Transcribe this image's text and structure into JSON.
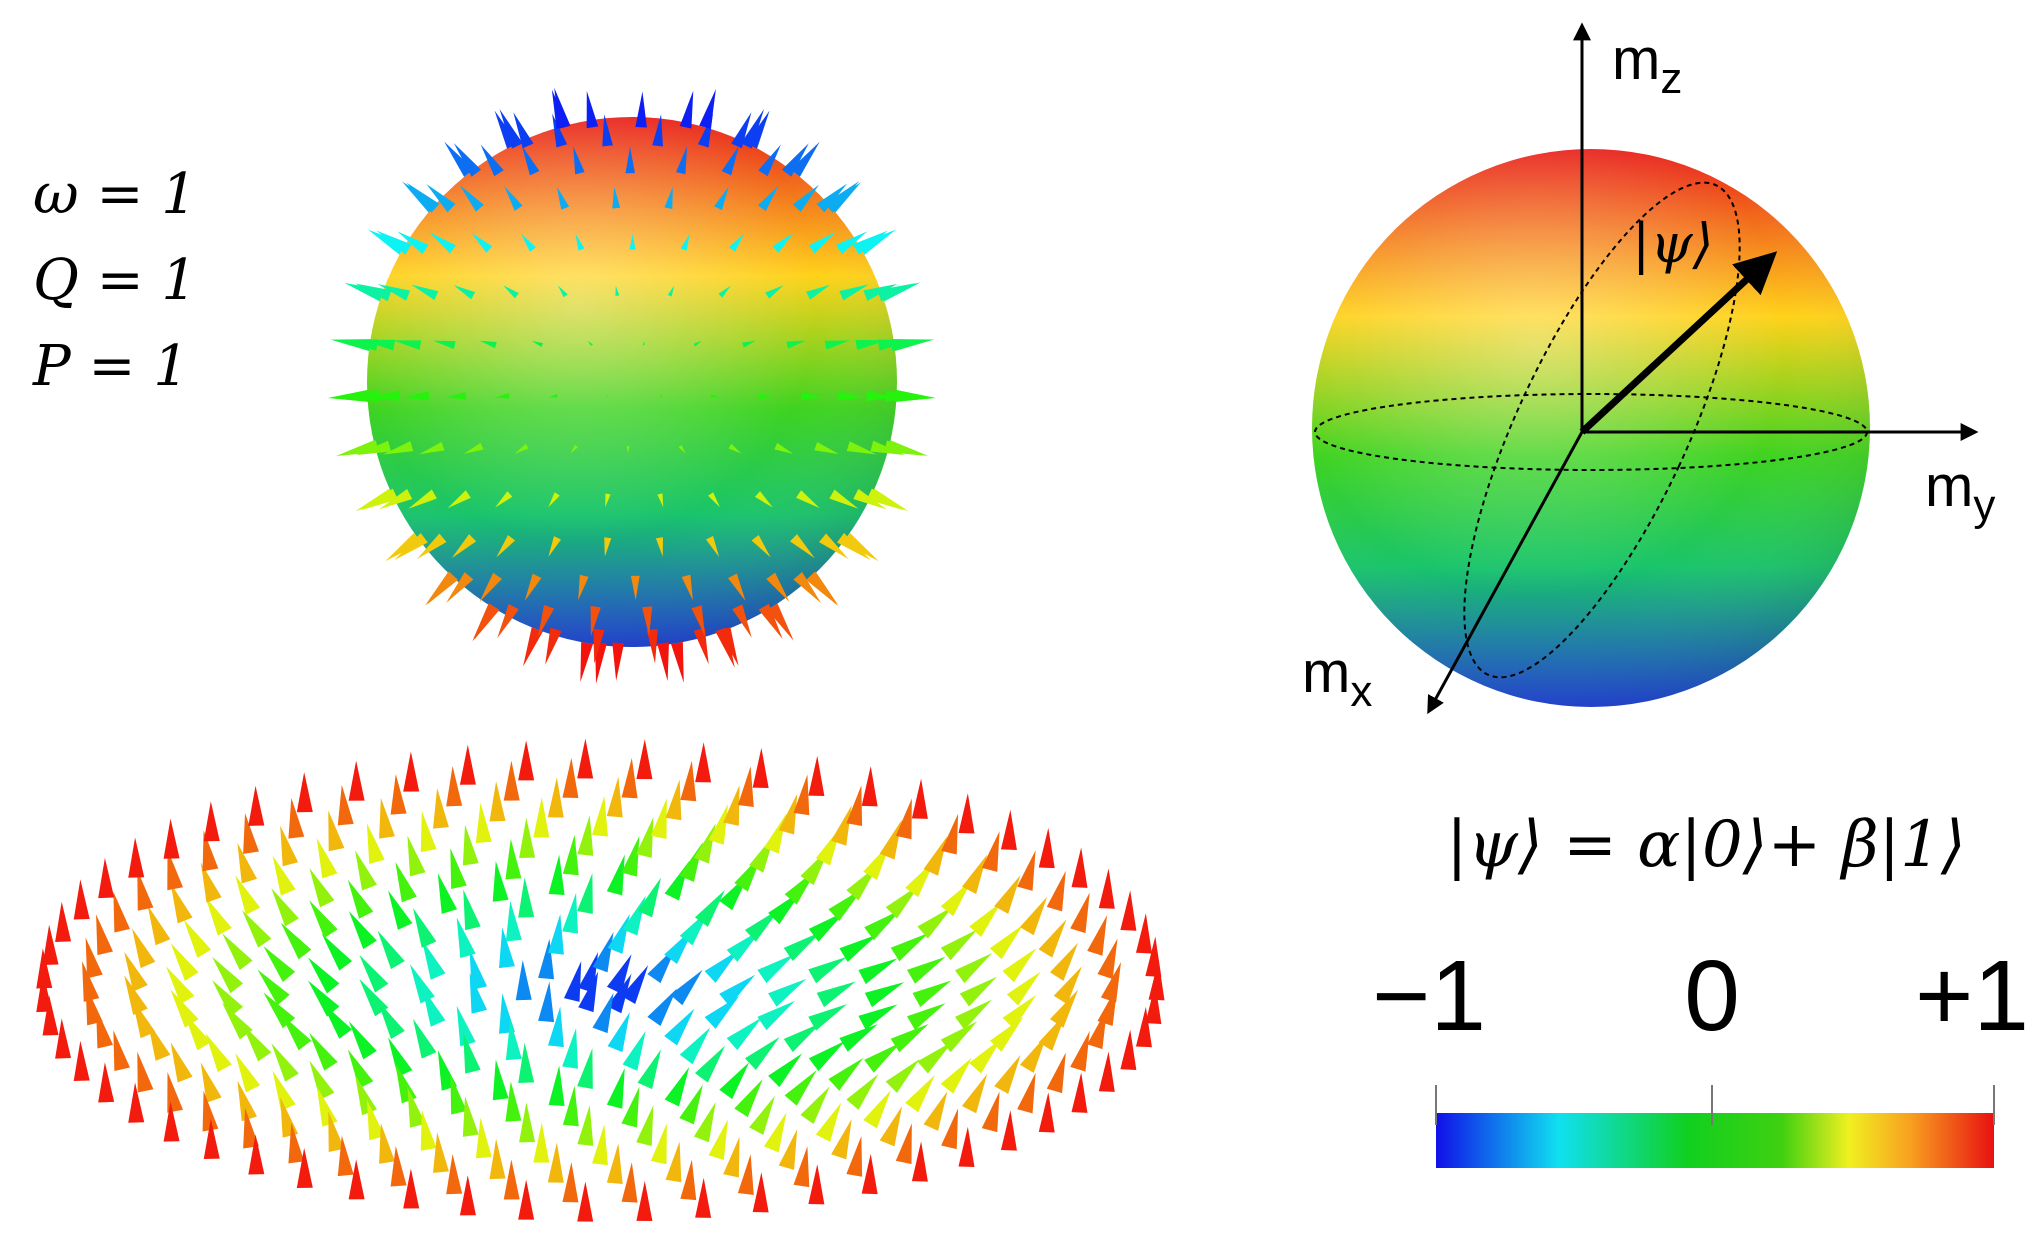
{
  "labels": {
    "omega": "ω = 1",
    "Q": "Q = 1",
    "P": "P = 1"
  },
  "bloch": {
    "mz": {
      "base": "m",
      "sub": "z"
    },
    "my": {
      "base": "m",
      "sub": "y"
    },
    "mx": {
      "base": "m",
      "sub": "x"
    },
    "state": "|ψ⟩",
    "equation": "|ψ⟩ = α|0⟩+ β|1⟩"
  },
  "colorbar": {
    "tick_labels": [
      "−1",
      "0",
      "+1"
    ]
  }
}
